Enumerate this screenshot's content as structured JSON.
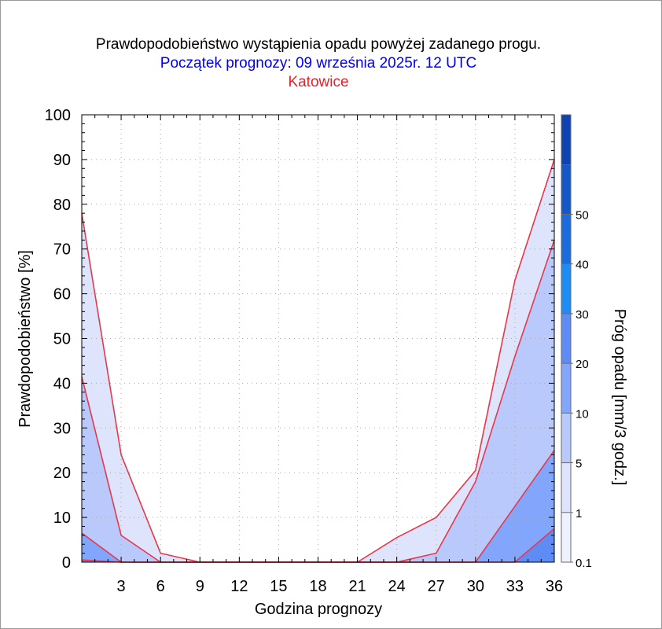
{
  "title": "Prawdopodobieństwo wystąpienia opadu powyżej zadanego progu.",
  "subtitle": "Początek prognozy: 09 września 2025r. 12 UTC",
  "location": "Katowice",
  "colors": {
    "title": "#000000",
    "subtitle": "#0000ee",
    "location": "#e8202a",
    "contour_line": "#e8374a"
  },
  "chart_data": {
    "type": "area",
    "title": "Prawdopodobieństwo wystąpienia opadu powyżej zadanego progu.",
    "xlabel": "Godzina prognozy",
    "ylabel": "Prawdopodobieństwo [%]",
    "xlim": [
      0,
      36
    ],
    "ylim": [
      0,
      100
    ],
    "x": [
      0,
      3,
      6,
      9,
      12,
      15,
      18,
      21,
      24,
      27,
      30,
      33,
      36
    ],
    "xticks": [
      "3",
      "6",
      "9",
      "12",
      "15",
      "18",
      "21",
      "24",
      "27",
      "30",
      "33",
      "36"
    ],
    "xtick_values": [
      3,
      6,
      9,
      12,
      15,
      18,
      21,
      24,
      27,
      30,
      33,
      36
    ],
    "yticks": [
      "0",
      "10",
      "20",
      "30",
      "40",
      "50",
      "60",
      "70",
      "80",
      "90",
      "100"
    ],
    "ytick_values": [
      0,
      10,
      20,
      30,
      40,
      50,
      60,
      70,
      80,
      90,
      100
    ],
    "grid": true,
    "series": [
      {
        "threshold": 0.1,
        "color": "#dde4fb",
        "values": [
          78,
          24,
          2,
          0,
          0,
          0,
          0,
          0,
          5.5,
          10,
          20.5,
          63,
          90
        ]
      },
      {
        "threshold": 1,
        "color": "#b9c9fb",
        "values": [
          41.5,
          6,
          0,
          0,
          0,
          0,
          0,
          0,
          0,
          2,
          18,
          46,
          72
        ]
      },
      {
        "threshold": 5,
        "color": "#81a6fb",
        "values": [
          6.5,
          0,
          0,
          0,
          0,
          0,
          0,
          0,
          0,
          0,
          0,
          12.5,
          25
        ]
      },
      {
        "threshold": 10,
        "color": "#5e8cf4",
        "values": [
          0.5,
          0,
          0,
          0,
          0,
          0,
          0,
          0,
          0,
          0,
          0,
          0,
          7.5
        ]
      }
    ],
    "colorbar": {
      "label": "Próg opadu [mm/3 godz.]",
      "tick_labels": [
        "0.1",
        "1",
        "5",
        "10",
        "20",
        "30",
        "40",
        "50"
      ],
      "colors": [
        "#eef2fe",
        "#dde4fb",
        "#b9c9fb",
        "#81a6fb",
        "#5e8cf4",
        "#1e8cf5",
        "#1a6cdd",
        "#1458c8",
        "#0e42b0"
      ]
    }
  }
}
